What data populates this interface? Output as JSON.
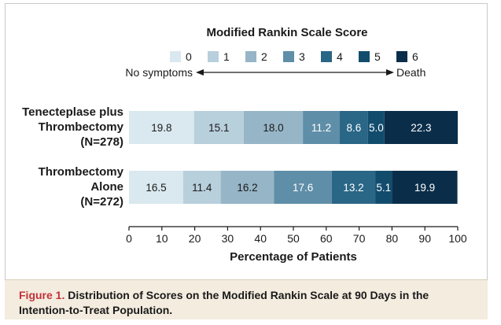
{
  "chart_data": {
    "type": "bar",
    "orientation": "horizontal-stacked-100",
    "title": "Modified Rankin Scale Score",
    "legend": {
      "placement": "top",
      "entries": [
        "0",
        "1",
        "2",
        "3",
        "4",
        "5",
        "6"
      ],
      "colors": [
        "#dae8ef",
        "#b8cfdc",
        "#96b5c7",
        "#5f8ea8",
        "#2a6686",
        "#124c6d",
        "#0a2e4a"
      ]
    },
    "scale_left": "No symptoms",
    "scale_right": "Death",
    "categories": [
      "Tenecteplase plus Thrombectomy (N=278)",
      "Thrombectomy Alone (N=272)"
    ],
    "category_lines": [
      [
        "Tenecteplase plus",
        "Thrombectomy",
        "(N=278)"
      ],
      [
        "Thrombectomy",
        "Alone",
        "(N=272)"
      ]
    ],
    "series": [
      {
        "name": "0",
        "values": [
          19.8,
          16.5
        ]
      },
      {
        "name": "1",
        "values": [
          15.1,
          11.4
        ]
      },
      {
        "name": "2",
        "values": [
          18.0,
          16.2
        ]
      },
      {
        "name": "3",
        "values": [
          11.2,
          17.6
        ]
      },
      {
        "name": "4",
        "values": [
          8.6,
          13.2
        ]
      },
      {
        "name": "5",
        "values": [
          5.0,
          5.1
        ]
      },
      {
        "name": "6",
        "values": [
          22.3,
          19.9
        ]
      }
    ],
    "xlabel": "Percentage of Patients",
    "xlim": [
      0,
      100
    ],
    "xticks": [
      0,
      10,
      20,
      30,
      40,
      50,
      60,
      70,
      80,
      90,
      100
    ],
    "grid": false
  },
  "caption": {
    "figure_label": "Figure 1.",
    "text": "Distribution of Scores on the Modified Rankin Scale at 90 Days in the Intention-to-Treat Population."
  }
}
